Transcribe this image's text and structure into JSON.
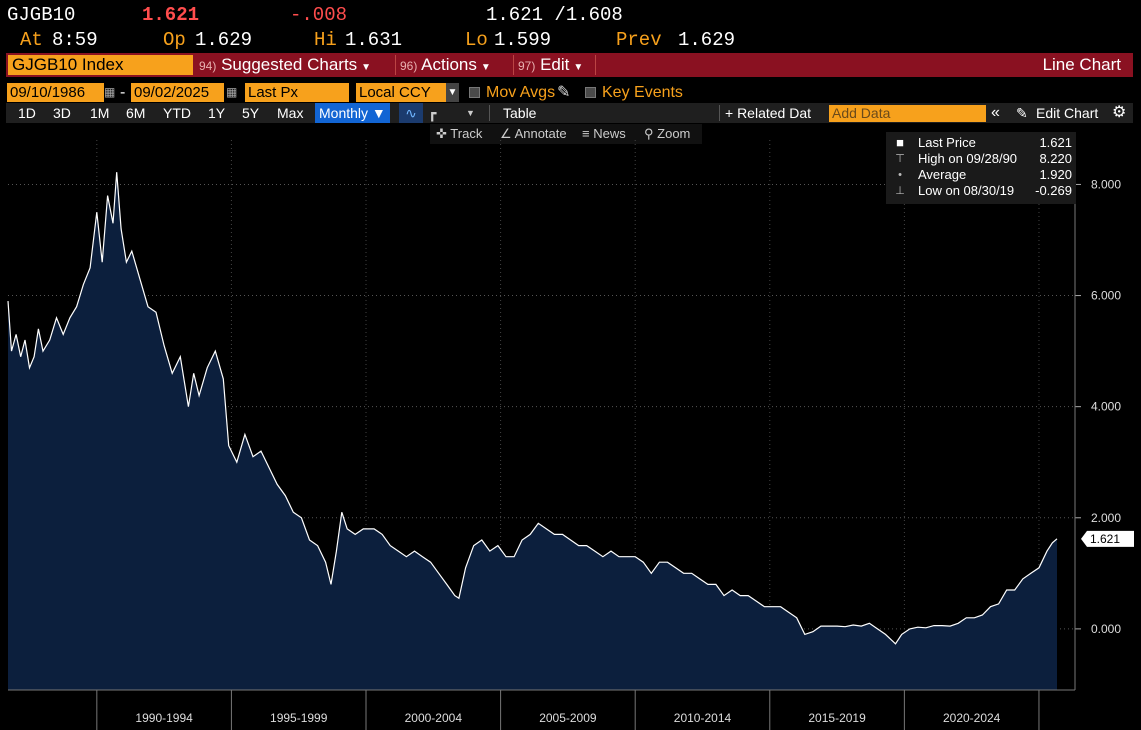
{
  "quote": {
    "ticker": "GJGB10",
    "last": "1.621",
    "change": "-.008",
    "bid_ask": "1.621 /1.608",
    "time_label": "At",
    "time": "8:59",
    "open_label": "Op",
    "open": "1.629",
    "high_label": "Hi",
    "high": "1.631",
    "low_label": "Lo",
    "low": "1.599",
    "prev_label": "Prev",
    "prev": "1.629"
  },
  "function_bar": {
    "security": "GJGB10 Index",
    "suggested_num": "94)",
    "suggested_label": "Suggested Charts",
    "actions_num": "96)",
    "actions_label": "Actions",
    "edit_num": "97)",
    "edit_label": "Edit",
    "chart_type": "Line Chart"
  },
  "params": {
    "start_date": "09/10/1986",
    "dash": "-",
    "end_date": "09/02/2025",
    "field": "Last Px",
    "currency": "Local CCY",
    "mov_avgs": "Mov Avgs",
    "key_events": "Key Events"
  },
  "periods": [
    "1D",
    "3D",
    "1M",
    "6M",
    "YTD",
    "1Y",
    "5Y",
    "Max"
  ],
  "toolbar": {
    "frequency": "Monthly ▼",
    "table": "Table",
    "related": "+ Related Dat",
    "add_data_placeholder": "Add Data",
    "collapse": "«",
    "edit_chart": "Edit Chart"
  },
  "subtools": {
    "track": "Track",
    "annotate": "Annotate",
    "news": "News",
    "zoom": "Zoom"
  },
  "legend": {
    "last_label": "Last Price",
    "last_value": "1.621",
    "high_label": "High on 09/28/90",
    "high_value": "8.220",
    "avg_label": "Average",
    "avg_value": "1.920",
    "low_label": "Low on 08/30/19",
    "low_value": "-0.269"
  },
  "colors": {
    "accent_orange": "#f7a11c",
    "function_bar_red": "#8a1121",
    "change_red": "#ff4d4d",
    "area_fill": "#0c1f3d",
    "line": "#ffffff"
  },
  "chart_data": {
    "type": "area",
    "title": "",
    "xlabel": "",
    "ylabel": "",
    "ylim": [
      -1.1,
      8.8
    ],
    "yticks": [
      0,
      2,
      4,
      6,
      8
    ],
    "ytick_labels": [
      "0.000",
      "2.000",
      "4.000",
      "6.000",
      "8.000"
    ],
    "x_groups": [
      "1990-1994",
      "1995-1999",
      "2000-2004",
      "2005-2009",
      "2010-2014",
      "2015-2019",
      "2020-2024"
    ],
    "x_range": [
      1986.7,
      2025.67
    ],
    "last_value_label": "1.621",
    "grid": true,
    "series": [
      {
        "x": [
          1986.7,
          1986.83,
          1987.0,
          1987.17,
          1987.33,
          1987.5,
          1987.67,
          1987.83,
          1988.0,
          1988.25,
          1988.5,
          1988.75,
          1989.0,
          1989.25,
          1989.5,
          1989.75,
          1990.0,
          1990.2,
          1990.4,
          1990.6,
          1990.74,
          1990.9,
          1991.1,
          1991.3,
          1991.6,
          1991.9,
          1992.2,
          1992.5,
          1992.8,
          1993.1,
          1993.4,
          1993.6,
          1993.8,
          1994.1,
          1994.4,
          1994.7,
          1994.9,
          1995.2,
          1995.5,
          1995.8,
          1996.1,
          1996.4,
          1996.7,
          1997.0,
          1997.3,
          1997.6,
          1997.9,
          1998.2,
          1998.5,
          1998.7,
          1998.9,
          1999.1,
          1999.3,
          1999.6,
          1999.9,
          2000.3,
          2000.6,
          2000.9,
          2001.2,
          2001.5,
          2001.8,
          2002.1,
          2002.4,
          2002.7,
          2003.0,
          2003.3,
          2003.45,
          2003.7,
          2004.0,
          2004.3,
          2004.6,
          2004.9,
          2005.2,
          2005.5,
          2005.8,
          2006.1,
          2006.4,
          2006.7,
          2007.0,
          2007.3,
          2007.6,
          2007.9,
          2008.2,
          2008.5,
          2008.8,
          2009.1,
          2009.4,
          2009.7,
          2010.0,
          2010.3,
          2010.6,
          2010.9,
          2011.2,
          2011.5,
          2011.8,
          2012.1,
          2012.4,
          2012.7,
          2013.0,
          2013.3,
          2013.6,
          2013.9,
          2014.2,
          2014.5,
          2014.8,
          2015.1,
          2015.4,
          2015.7,
          2016.0,
          2016.3,
          2016.6,
          2016.9,
          2017.2,
          2017.5,
          2017.8,
          2018.1,
          2018.4,
          2018.7,
          2019.0,
          2019.3,
          2019.67,
          2019.9,
          2020.2,
          2020.5,
          2020.8,
          2021.1,
          2021.4,
          2021.7,
          2022.0,
          2022.3,
          2022.6,
          2022.9,
          2023.2,
          2023.5,
          2023.8,
          2024.1,
          2024.4,
          2024.7,
          2025.0,
          2025.3,
          2025.5,
          2025.67
        ],
        "y": [
          5.9,
          5.0,
          5.3,
          4.9,
          5.2,
          4.7,
          4.9,
          5.4,
          5.0,
          5.2,
          5.6,
          5.3,
          5.6,
          5.8,
          6.2,
          6.5,
          7.5,
          6.6,
          7.8,
          7.3,
          8.22,
          7.2,
          6.6,
          6.8,
          6.3,
          5.8,
          5.7,
          5.1,
          4.6,
          4.9,
          4.0,
          4.6,
          4.2,
          4.7,
          5.0,
          4.5,
          3.3,
          3.0,
          3.5,
          3.1,
          3.2,
          2.9,
          2.6,
          2.4,
          2.1,
          2.0,
          1.6,
          1.5,
          1.2,
          0.8,
          1.4,
          2.1,
          1.8,
          1.7,
          1.8,
          1.8,
          1.7,
          1.5,
          1.4,
          1.3,
          1.4,
          1.3,
          1.2,
          1.0,
          0.8,
          0.6,
          0.55,
          1.1,
          1.5,
          1.6,
          1.4,
          1.5,
          1.3,
          1.3,
          1.6,
          1.7,
          1.9,
          1.8,
          1.7,
          1.7,
          1.6,
          1.5,
          1.5,
          1.4,
          1.3,
          1.4,
          1.3,
          1.3,
          1.3,
          1.2,
          1.0,
          1.2,
          1.2,
          1.1,
          1.0,
          1.0,
          0.9,
          0.8,
          0.8,
          0.6,
          0.7,
          0.6,
          0.6,
          0.5,
          0.4,
          0.4,
          0.4,
          0.3,
          0.2,
          -0.1,
          -0.05,
          0.05,
          0.05,
          0.05,
          0.04,
          0.07,
          0.05,
          0.1,
          0.0,
          -0.1,
          -0.269,
          -0.1,
          0.0,
          0.03,
          0.02,
          0.06,
          0.06,
          0.05,
          0.1,
          0.2,
          0.2,
          0.25,
          0.4,
          0.45,
          0.7,
          0.7,
          0.9,
          1.0,
          1.1,
          1.4,
          1.55,
          1.621
        ]
      }
    ]
  }
}
